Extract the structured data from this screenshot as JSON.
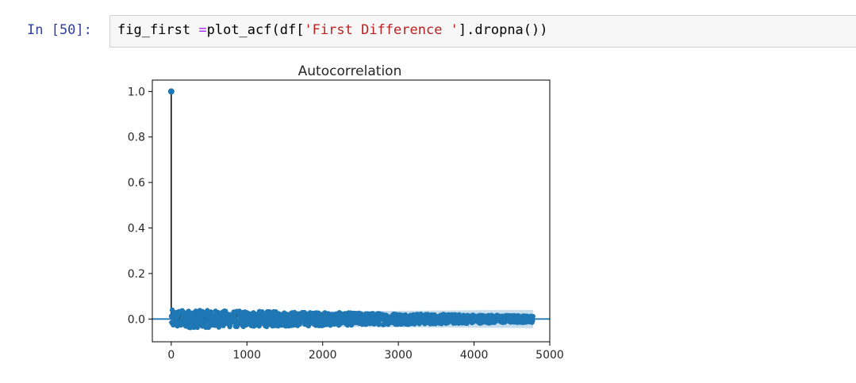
{
  "cell": {
    "prompt": "In [50]:",
    "code": {
      "var": "fig_first ",
      "op": "=",
      "call_open": "plot_acf(df[",
      "string": "'First Difference '",
      "call_close": "].dropna())"
    }
  },
  "chart_data": {
    "type": "scatter",
    "title": "Autocorrelation",
    "xlabel": "",
    "ylabel": "",
    "xlim": [
      -250,
      5000
    ],
    "ylim": [
      -0.1,
      1.05
    ],
    "xticks": [
      0,
      1000,
      2000,
      3000,
      4000,
      5000
    ],
    "xtick_labels": [
      "0",
      "1000",
      "2000",
      "3000",
      "4000",
      "5000"
    ],
    "yticks": [
      0.0,
      0.2,
      0.4,
      0.6,
      0.8,
      1.0
    ],
    "ytick_labels": [
      "0.0",
      "0.2",
      "0.4",
      "0.6",
      "0.8",
      "1.0"
    ],
    "grid": false,
    "n_lags": 4780,
    "lag0_value": 1.0,
    "acf_amplitude_start": 0.04,
    "acf_amplitude_end": 0.015,
    "confidence_band": [
      -0.03,
      0.03
    ],
    "colors": {
      "markers": "#1f77b4",
      "stems": "#000000",
      "band": "#1f77b4",
      "zero_line": "#1f77b4"
    }
  }
}
